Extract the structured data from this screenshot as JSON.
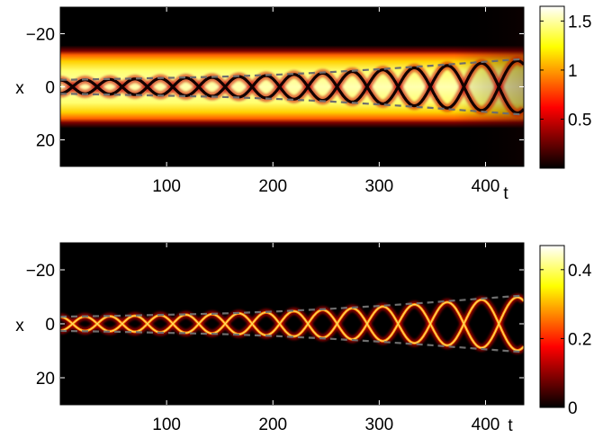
{
  "chart_data": [
    {
      "type": "heatmap",
      "title": "",
      "xlabel": "t",
      "ylabel": "x",
      "xlim": [
        0,
        436
      ],
      "ylim": [
        -30,
        30
      ],
      "y_reversed": true,
      "xticks": [
        100,
        200,
        300,
        400
      ],
      "yticks": [
        -20,
        0,
        20
      ],
      "colormap": "hot",
      "colorbar": {
        "range": [
          0,
          1.65
        ],
        "ticks": [
          0.5,
          1,
          1.5
        ],
        "tick_labels": [
          "0.5",
          "1",
          "1.5"
        ]
      },
      "field": "Bright background band of width about 26 (x from -13 to 13) with intensity near 1.6, carrying two dark solitons that oscillate symmetrically about x = 0",
      "background_band": {
        "x_min": -13,
        "x_max": 13,
        "peak_value": 1.6
      },
      "soliton_trajectories": [
        {
          "name": "soliton",
          "t": [
            0,
            50,
            100,
            150,
            200,
            250,
            300,
            350,
            400,
            436
          ],
          "x": [
            -2.5,
            -2.8,
            -3.2,
            -3.6,
            -4.3,
            -5.2,
            -6.3,
            -7.6,
            -9.0,
            -10.0
          ]
        },
        {
          "name": "soliton",
          "t": [
            0,
            50,
            100,
            150,
            200,
            250,
            300,
            350,
            400,
            436
          ],
          "x": [
            2.5,
            2.8,
            3.2,
            3.6,
            4.3,
            5.2,
            6.3,
            7.6,
            9.0,
            10.0
          ]
        }
      ],
      "oscillation_period": [
        46,
        47,
        48,
        50,
        52,
        55,
        58,
        62,
        66,
        70
      ],
      "analytic_curves": "dashed gray envelopes tracking the soliton positions"
    },
    {
      "type": "heatmap",
      "title": "",
      "xlabel": "t",
      "ylabel": "x",
      "xlim": [
        0,
        436
      ],
      "ylim": [
        -30,
        30
      ],
      "y_reversed": true,
      "xticks": [
        100,
        200,
        300,
        400
      ],
      "yticks": [
        -20,
        0,
        20
      ],
      "colormap": "hot",
      "colorbar": {
        "range": [
          0,
          0.47
        ],
        "ticks": [
          0,
          0.2,
          0.4
        ],
        "tick_labels": [
          "0",
          "0.2",
          "0.4"
        ]
      },
      "field": "Dark background with two bright solitons that oscillate symmetrically about x = 0 and collide at x = 0",
      "peak_value": 0.47,
      "soliton_trajectories": [
        {
          "name": "soliton",
          "t": [
            0,
            50,
            100,
            150,
            200,
            250,
            300,
            350,
            400,
            436
          ],
          "x": [
            -2.5,
            -2.8,
            -3.2,
            -3.6,
            -4.3,
            -5.2,
            -6.3,
            -7.6,
            -9.0,
            -10.0
          ]
        },
        {
          "name": "soliton",
          "t": [
            0,
            50,
            100,
            150,
            200,
            250,
            300,
            350,
            400,
            436
          ],
          "x": [
            2.5,
            2.8,
            3.2,
            3.6,
            4.3,
            5.2,
            6.3,
            7.6,
            9.0,
            10.0
          ]
        }
      ],
      "oscillation_period": [
        46,
        47,
        48,
        50,
        52,
        55,
        58,
        62,
        66,
        70
      ],
      "analytic_curves": "dashed gray envelopes tracking the soliton positions"
    }
  ]
}
